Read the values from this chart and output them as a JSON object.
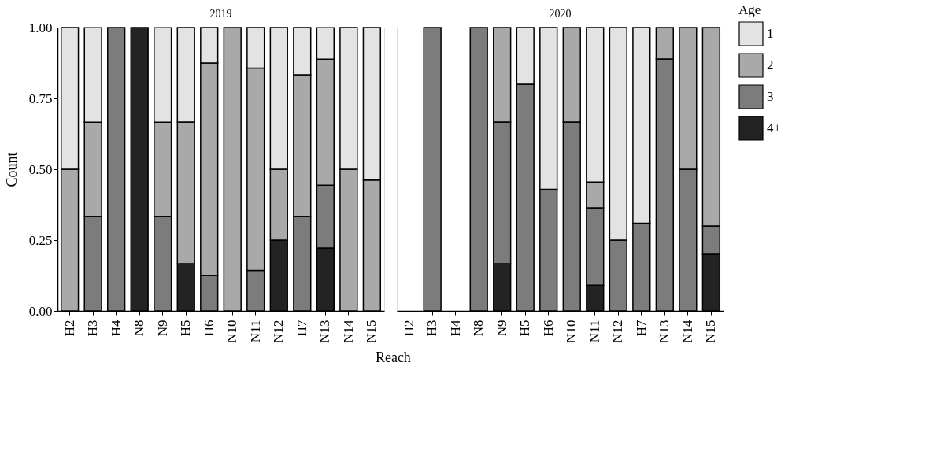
{
  "chart_data": [
    {
      "type": "bar",
      "title": "2019",
      "stacked": true,
      "ylabel": "Count",
      "xlabel": "Reach",
      "legend": "right",
      "legend_title": "Age",
      "grid": false,
      "categories": [
        "H2",
        "H3",
        "H4",
        "N8",
        "N9",
        "H5",
        "H6",
        "N10",
        "N11",
        "N12",
        "H7",
        "N13",
        "N14",
        "N15"
      ],
      "ylim": [
        0,
        1
      ],
      "yticks": [
        {
          "value": 0,
          "label": "0.00"
        },
        {
          "value": 0.25,
          "label": "0.25"
        },
        {
          "value": 0.5,
          "label": "0.50"
        },
        {
          "value": 0.75,
          "label": "0.75"
        },
        {
          "value": 1,
          "label": "1.00"
        }
      ],
      "series": [
        {
          "name": "4+",
          "color": "#232323",
          "values": [
            null,
            null,
            null,
            1,
            null,
            0.167,
            null,
            null,
            null,
            0.25,
            null,
            0.222,
            null,
            null
          ]
        },
        {
          "name": "3",
          "color": "#7c7c7c",
          "values": [
            null,
            0.333,
            1,
            null,
            0.333,
            null,
            0.125,
            null,
            0.143,
            null,
            0.333,
            0.222,
            null,
            null
          ]
        },
        {
          "name": "2",
          "color": "#a9a9a9",
          "values": [
            0.5,
            0.333,
            null,
            null,
            0.333,
            0.5,
            0.75,
            1,
            0.714,
            0.25,
            0.5,
            0.444,
            0.5,
            0.462
          ]
        },
        {
          "name": "1",
          "color": "#e3e3e3",
          "values": [
            0.5,
            0.333,
            null,
            null,
            0.333,
            0.333,
            0.125,
            null,
            0.143,
            0.5,
            0.167,
            0.111,
            0.5,
            0.538
          ]
        }
      ]
    },
    {
      "type": "bar",
      "title": "2020",
      "stacked": true,
      "tick_labels": "x",
      "grid": false,
      "categories": [
        "H2",
        "H3",
        "H4",
        "N8",
        "N9",
        "H5",
        "H6",
        "N10",
        "N11",
        "N12",
        "H7",
        "N13",
        "N14",
        "N15"
      ],
      "ylim": [
        0,
        1
      ],
      "series": [
        {
          "color": "#232323",
          "values": [
            null,
            null,
            null,
            null,
            0.167,
            null,
            null,
            null,
            0.091,
            null,
            null,
            null,
            null,
            0.2
          ]
        },
        {
          "color": "#7c7c7c",
          "values": [
            null,
            1,
            null,
            1,
            0.5,
            0.8,
            0.429,
            0.667,
            0.273,
            0.25,
            0.31,
            0.889,
            0.5,
            0.1
          ]
        },
        {
          "color": "#a9a9a9",
          "values": [
            null,
            null,
            null,
            null,
            0.333,
            null,
            null,
            0.333,
            0.091,
            null,
            null,
            0.111,
            0.5,
            0.7
          ]
        },
        {
          "color": "#e3e3e3",
          "values": [
            null,
            null,
            null,
            null,
            null,
            0.2,
            0.571,
            null,
            0.545,
            0.75,
            0.69,
            null,
            null,
            null
          ]
        }
      ]
    }
  ]
}
